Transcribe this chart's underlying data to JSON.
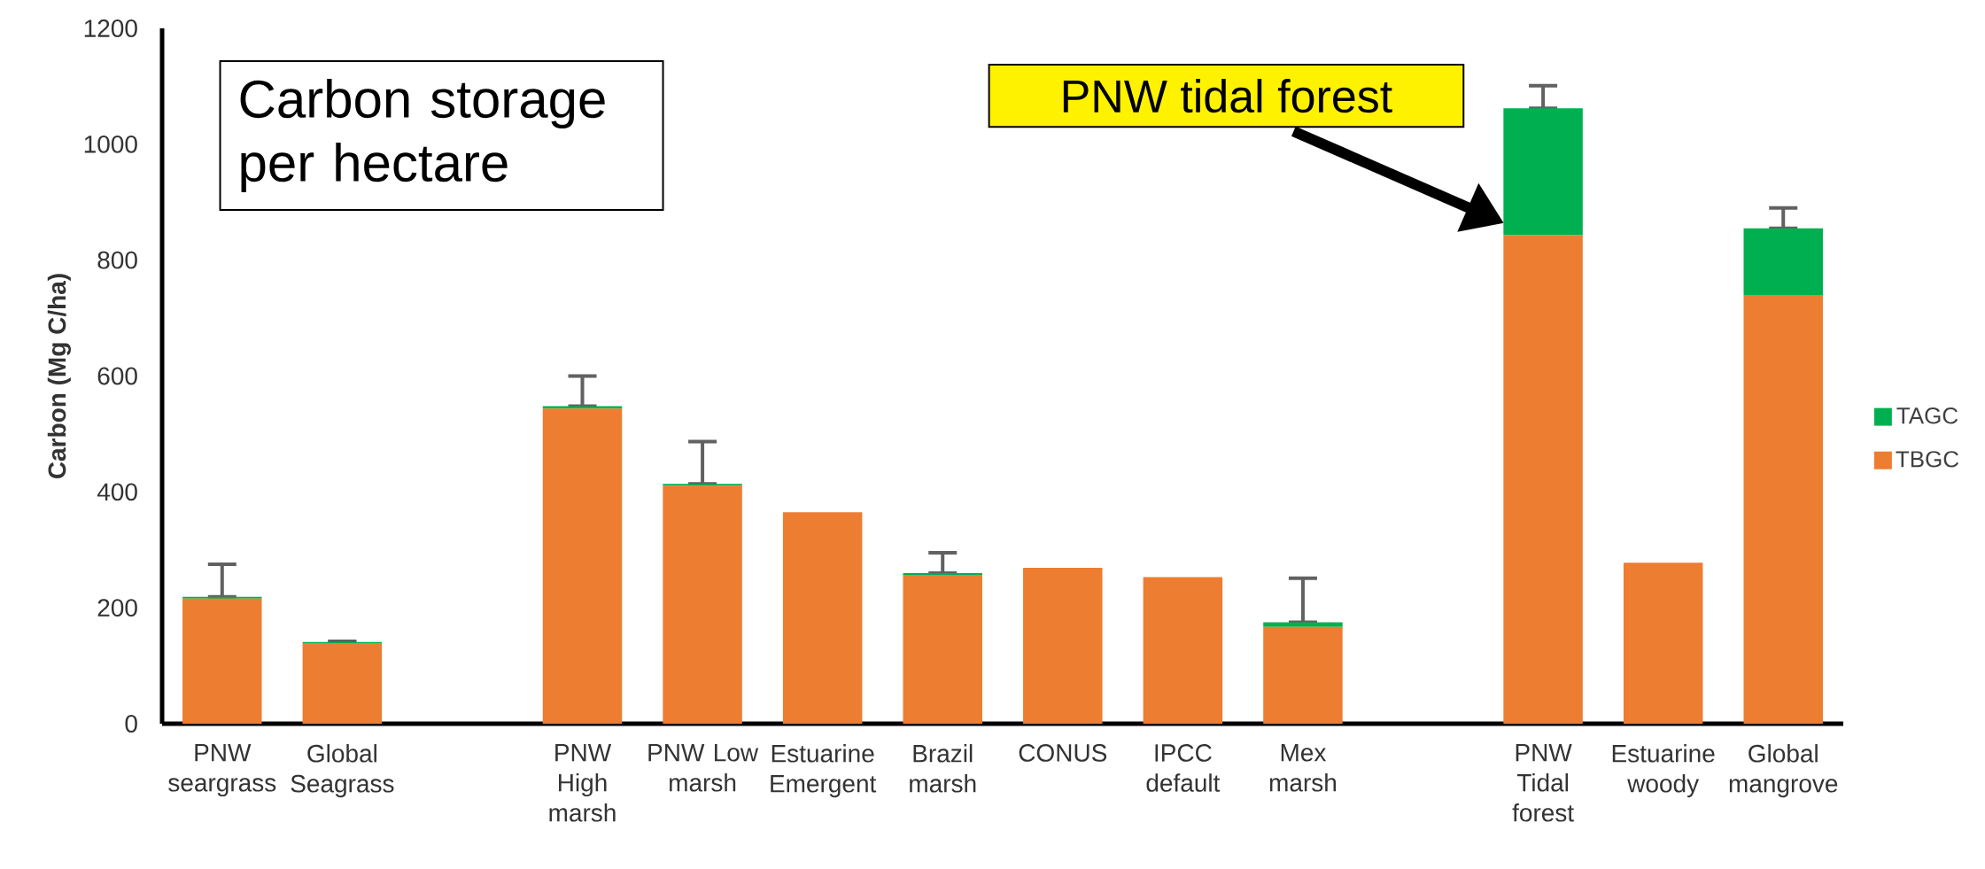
{
  "chart_data": {
    "type": "bar",
    "stacked": true,
    "ylabel": "Carbon (Mg C/ha)",
    "categories": [
      "PNW seargrass",
      "Global Seagrass",
      null,
      "PNW High marsh",
      "PNW Low marsh",
      "Estuarine Emergent",
      "Brazil marsh",
      "CONUS",
      "IPCC default",
      "Mex marsh",
      null,
      "PNW Tidal forest",
      "Estuarine woody",
      "Global mangrove"
    ],
    "series": [
      {
        "name": "TBGC",
        "color": "#ed7d31",
        "values": [
          216,
          139,
          null,
          544,
          411,
          365,
          257,
          269,
          253,
          167,
          null,
          843,
          278,
          740
        ]
      },
      {
        "name": "TAGC",
        "color": "#00b050",
        "values": [
          3,
          2,
          null,
          4,
          3,
          null,
          3,
          null,
          null,
          8,
          null,
          219,
          null,
          115
        ],
        "errors": [
          [
            219,
            275
          ],
          [
            141,
            142
          ],
          null,
          [
            548,
            600
          ],
          [
            414,
            487
          ],
          null,
          [
            260,
            295
          ],
          null,
          null,
          [
            175,
            251
          ],
          null,
          [
            1062,
            1101
          ],
          null,
          [
            855,
            890
          ]
        ]
      }
    ],
    "ylim": [
      0,
      1200
    ],
    "yticks": [
      0,
      200,
      400,
      600,
      800,
      1000,
      1200
    ],
    "grid": false,
    "legend": "right",
    "annotations": [
      "Carbon storage per hectare",
      "PNW tidal forest"
    ]
  }
}
